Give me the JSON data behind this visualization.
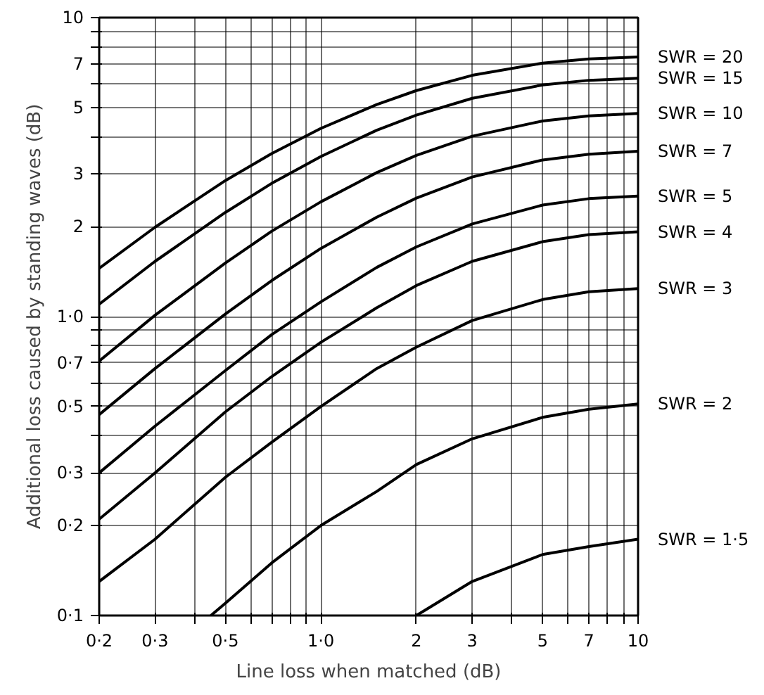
{
  "chart_data": {
    "type": "line",
    "xlabel": "Line loss when matched (dB)",
    "ylabel": "Additional loss caused by standing waves (dB)",
    "log": "xy",
    "grid": true,
    "marker": "none",
    "line_style": "solid",
    "x": [
      0.2,
      0.3,
      0.5,
      0.7,
      1,
      1.5,
      2,
      3,
      5,
      7,
      10
    ],
    "xlim": [
      0.2,
      10
    ],
    "ylim": [
      0.1,
      10
    ],
    "xticks": [
      {
        "value": 0.2,
        "label": "0·2"
      },
      {
        "value": 0.3,
        "label": "0·3"
      },
      {
        "value": 0.4,
        "label": null
      },
      {
        "value": 0.5,
        "label": "0·5"
      },
      {
        "value": 0.6,
        "label": null
      },
      {
        "value": 0.7,
        "label": null
      },
      {
        "value": 0.8,
        "label": null
      },
      {
        "value": 0.9,
        "label": null
      },
      {
        "value": 1,
        "label": "1·0"
      },
      2,
      3,
      {
        "value": 4,
        "label": null
      },
      5,
      {
        "value": 6,
        "label": null
      },
      7,
      {
        "value": 8,
        "label": null
      },
      {
        "value": 9,
        "label": null
      },
      10
    ],
    "yticks": [
      {
        "value": 0.1,
        "label": "0·1"
      },
      {
        "value": 0.2,
        "label": "0·2"
      },
      {
        "value": 0.3,
        "label": "0·3"
      },
      {
        "value": 0.4,
        "label": null
      },
      {
        "value": 0.5,
        "label": "0·5"
      },
      {
        "value": 0.6,
        "label": null
      },
      {
        "value": 0.7,
        "label": "0·7"
      },
      {
        "value": 0.8,
        "label": null
      },
      {
        "value": 0.9,
        "label": null
      },
      {
        "value": 1,
        "label": "1·0"
      },
      2,
      3,
      {
        "value": 4,
        "label": null
      },
      5,
      {
        "value": 6,
        "label": null
      },
      7,
      {
        "value": 8,
        "label": null
      },
      {
        "value": 9,
        "label": null
      },
      10
    ],
    "series": [
      {
        "name": "SWR = 20",
        "color": "#000000",
        "values": [
          1.45,
          1.99,
          2.85,
          3.51,
          4.26,
          5.12,
          5.7,
          6.41,
          7.04,
          7.27,
          7.38
        ]
      },
      {
        "name": "SWR = 15",
        "color": "#000000",
        "values": [
          1.1,
          1.53,
          2.23,
          2.79,
          3.43,
          4.2,
          4.72,
          5.37,
          5.95,
          6.17,
          6.27
        ]
      },
      {
        "name": "SWR = 10",
        "color": "#000000",
        "values": [
          0.71,
          1.01,
          1.51,
          1.93,
          2.42,
          3.03,
          3.46,
          4.01,
          4.51,
          4.69,
          4.78
        ]
      },
      {
        "name": "SWR = 7",
        "color": "#000000",
        "values": [
          0.47,
          0.67,
          1.02,
          1.32,
          1.69,
          2.15,
          2.49,
          2.93,
          3.34,
          3.49,
          3.57
        ]
      },
      {
        "name": "SWR = 5",
        "color": "#000000",
        "values": [
          0.3,
          0.43,
          0.66,
          0.87,
          1.12,
          1.46,
          1.71,
          2.04,
          2.36,
          2.48,
          2.53
        ]
      },
      {
        "name": "SWR = 4",
        "color": "#000000",
        "values": [
          0.21,
          0.3,
          0.48,
          0.63,
          0.82,
          1.07,
          1.27,
          1.53,
          1.78,
          1.88,
          1.92
        ]
      },
      {
        "name": "SWR = 3",
        "color": "#000000",
        "values": [
          0.13,
          0.18,
          0.29,
          0.38,
          0.5,
          0.67,
          0.79,
          0.97,
          1.14,
          1.21,
          1.24
        ]
      },
      {
        "name": "SWR = 2",
        "color": "#000000",
        "x": [
          0.45,
          0.5,
          0.7,
          1,
          1.5,
          2,
          3,
          5,
          7,
          10
        ],
        "values": [
          0.1,
          0.11,
          0.15,
          0.2,
          0.26,
          0.32,
          0.39,
          0.46,
          0.49,
          0.51
        ]
      },
      {
        "name": "SWR = 1·5",
        "color": "#000000",
        "x": [
          2,
          3,
          5,
          7,
          10
        ],
        "values": [
          0.1,
          0.13,
          0.16,
          0.17,
          0.18
        ]
      }
    ]
  }
}
